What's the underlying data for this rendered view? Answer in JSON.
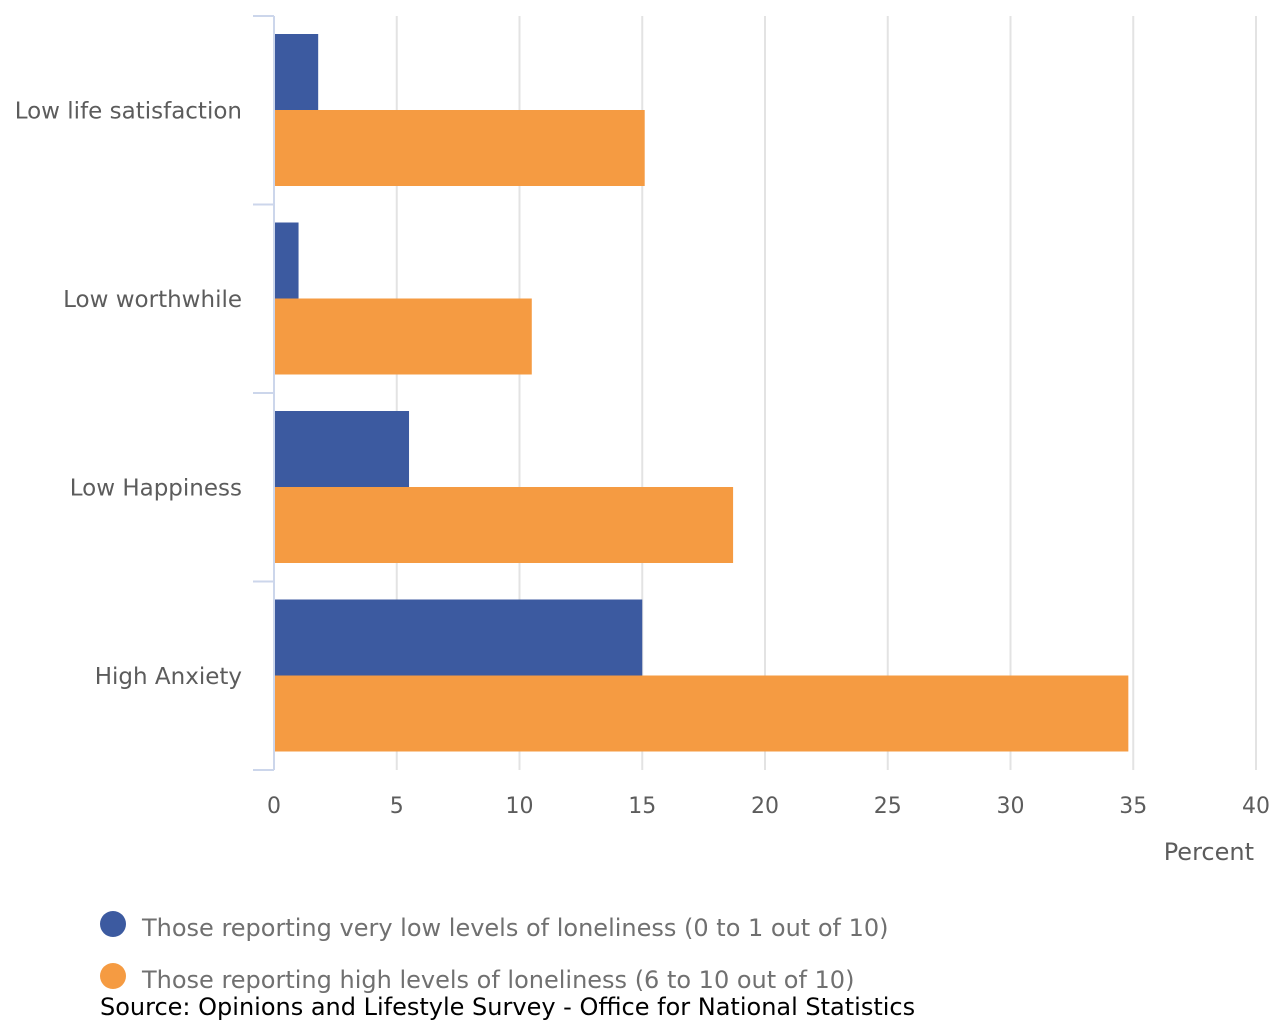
{
  "chart_data": {
    "type": "bar",
    "orientation": "horizontal",
    "categories": [
      "Low life satisfaction",
      "Low worthwhile",
      "Low Happiness",
      "High Anxiety"
    ],
    "series": [
      {
        "name": "Those reporting very low levels of loneliness (0 to 1 out of 10)",
        "color": "#3c5aa0",
        "values": [
          1.8,
          1.0,
          5.5,
          15.0
        ]
      },
      {
        "name": "Those reporting high levels of loneliness (6 to 10 out of 10)",
        "color": "#f59b42",
        "values": [
          15.1,
          10.5,
          18.7,
          34.8
        ]
      }
    ],
    "xlim": [
      0,
      40
    ],
    "xticks": [
      0,
      5,
      10,
      15,
      20,
      25,
      30,
      35,
      40
    ],
    "xlabel": "Percent",
    "ylabel": "",
    "title": "",
    "grid": true,
    "legend_position": "bottom-left"
  },
  "source": "Source: Opinions and Lifestyle Survey - Office for National Statistics"
}
